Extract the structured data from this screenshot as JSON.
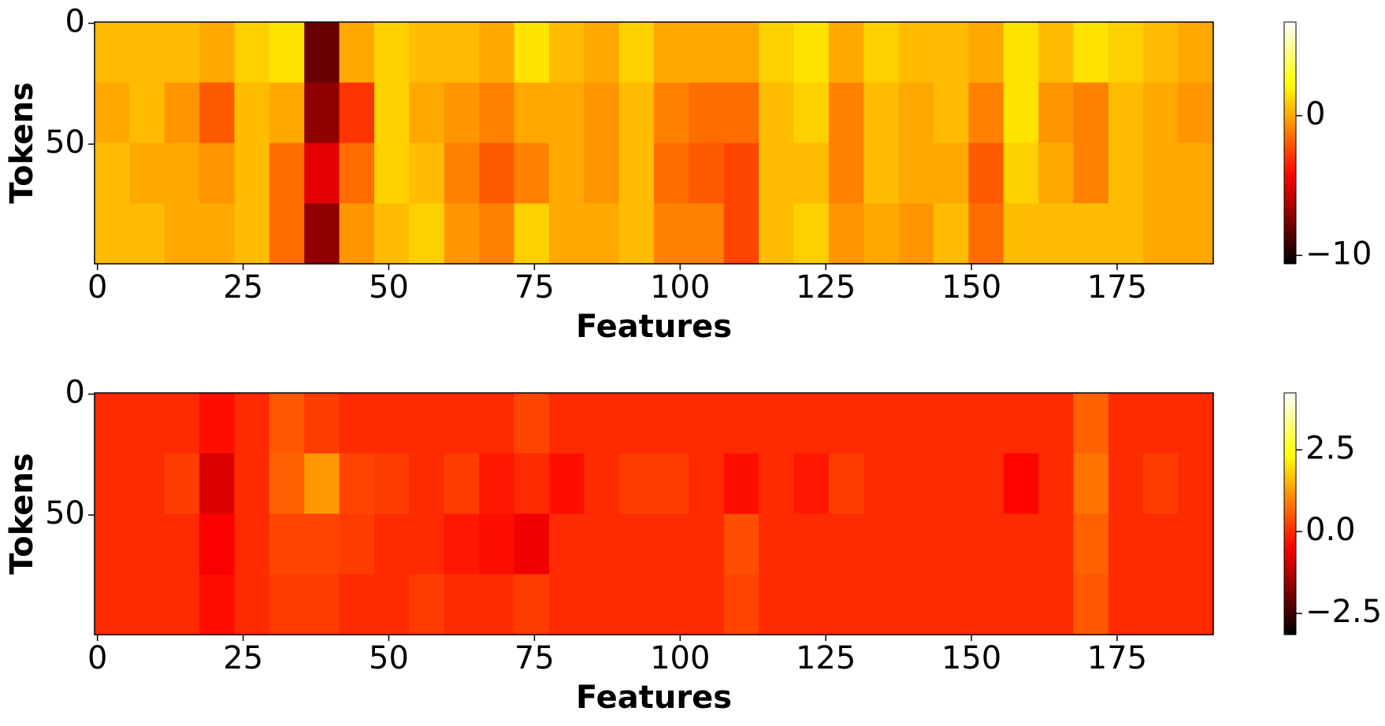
{
  "chart_data": [
    {
      "type": "heatmap",
      "colormap": "hot",
      "xlabel": "Features",
      "ylabel": "Tokens",
      "xlim": [
        -0.5,
        191.5
      ],
      "xticks": [
        0,
        25,
        50,
        75,
        100,
        125,
        150,
        175
      ],
      "ylim": [
        -0.5,
        99.5
      ],
      "y_inverted": true,
      "yticks": [
        0,
        50
      ],
      "clim": [
        -10.6,
        6.7
      ],
      "cticks": [
        {
          "value": -10,
          "label": "−10"
        },
        0
      ],
      "z": [
        [
          0.5,
          0.5,
          0.5,
          0,
          1,
          1.5,
          -8,
          0,
          1,
          0.5,
          0.5,
          0,
          1.5,
          0.5,
          0,
          1,
          0,
          0,
          0,
          1,
          1.5,
          0,
          1,
          0.5,
          0.5,
          0,
          1.5,
          0.5,
          1.5,
          1,
          0.5,
          0
        ],
        [
          0,
          0.5,
          -0.5,
          -2,
          0.5,
          0,
          -7,
          -3,
          1,
          0,
          -0.5,
          -1,
          0,
          0,
          -0.5,
          0.5,
          -1,
          -1.5,
          -1.5,
          0.5,
          1,
          -1,
          0.5,
          0,
          0.5,
          -1,
          1.5,
          -0.5,
          -1,
          0.5,
          0,
          -0.5
        ],
        [
          0.5,
          0,
          0,
          -0.5,
          0.5,
          -1.5,
          -5,
          -1.5,
          1,
          0.5,
          -1,
          -2,
          -1,
          0,
          -0.5,
          0.5,
          -1.5,
          -2,
          -2.5,
          0.5,
          0.5,
          -1,
          0.5,
          0,
          0,
          -2,
          1,
          0,
          -1,
          0.5,
          0,
          0
        ],
        [
          0.5,
          0.5,
          0,
          0,
          0.5,
          -1.5,
          -7,
          -0.5,
          0.5,
          1,
          -0.5,
          -1,
          1,
          0,
          0,
          0.5,
          -1,
          -1,
          -2.5,
          0.5,
          1,
          -0.5,
          0,
          -0.5,
          0.5,
          -1.5,
          0.5,
          0.5,
          0.5,
          0.5,
          0,
          0
        ]
      ]
    },
    {
      "type": "heatmap",
      "colormap": "hot",
      "xlabel": "Features",
      "ylabel": "Tokens",
      "xlim": [
        -0.5,
        191.5
      ],
      "xticks": [
        0,
        25,
        50,
        75,
        100,
        125,
        150,
        175
      ],
      "ylim": [
        -0.5,
        99.5
      ],
      "y_inverted": true,
      "yticks": [
        0,
        50
      ],
      "clim": [
        -3.15,
        4.24
      ],
      "cticks": [
        {
          "value": -2.5,
          "label": "−2.5"
        },
        {
          "value": 0,
          "label": "0.0"
        },
        2.5
      ],
      "z": [
        [
          0,
          0,
          0,
          -0.3,
          0,
          0.5,
          0.2,
          0,
          0,
          0,
          0,
          0,
          0.3,
          0,
          0,
          0,
          0,
          0,
          0,
          0,
          0,
          0,
          0,
          0,
          0,
          0,
          0,
          0,
          0.6,
          0,
          0,
          0
        ],
        [
          0,
          0,
          0.2,
          -0.8,
          0,
          0.6,
          1.2,
          0.3,
          0.2,
          0,
          0.2,
          -0.2,
          0,
          -0.3,
          0,
          0.2,
          0.2,
          0,
          -0.3,
          0,
          -0.2,
          0.2,
          0,
          0,
          0,
          0,
          -0.4,
          0,
          0.8,
          0,
          0.2,
          0
        ],
        [
          0,
          0,
          0,
          -0.5,
          0,
          0.3,
          0.3,
          0.2,
          0,
          0,
          -0.2,
          -0.3,
          -0.6,
          0,
          0,
          0,
          0,
          0,
          0.4,
          0,
          0,
          0,
          0,
          0,
          0,
          0,
          0,
          0,
          0.6,
          0,
          0,
          0
        ],
        [
          0,
          0,
          0,
          -0.3,
          0,
          0.2,
          0.2,
          0,
          0,
          0.2,
          0,
          0,
          0.2,
          0,
          0,
          0,
          0,
          0,
          0.3,
          0,
          0,
          0,
          0,
          0,
          0,
          0,
          0,
          0,
          0.5,
          0,
          0,
          0
        ]
      ]
    }
  ]
}
